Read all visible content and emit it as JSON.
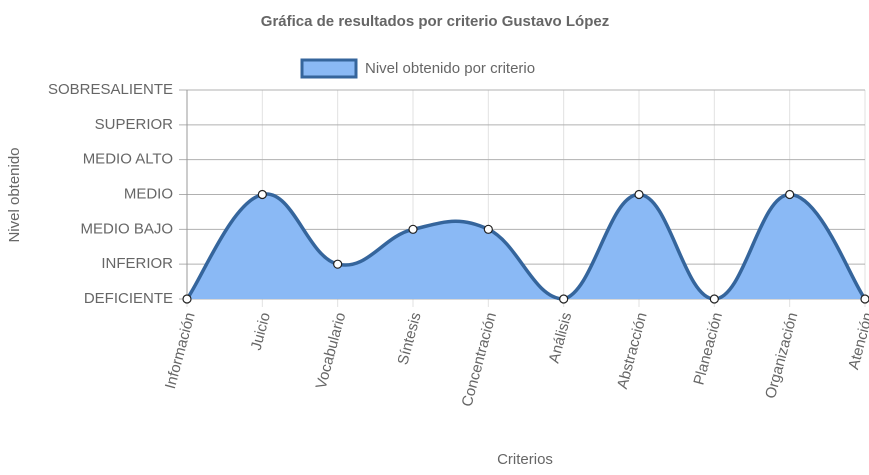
{
  "chart_data": {
    "type": "line",
    "title": "Gráfica de resultados por criterio Gustavo López",
    "x_label": "Criterios",
    "y_label": "Nivel obtenido",
    "categories": [
      "Información",
      "Juicio",
      "Vocabulario",
      "Síntesis",
      "Concentración",
      "Análisis",
      "Abstracción",
      "Planeación",
      "Organización",
      "Atención"
    ],
    "series": [
      {
        "name": "Nivel obtenido por criterio",
        "color": "#35659c",
        "fill": "#8ab9f5",
        "values": [
          0,
          3,
          1,
          2,
          2,
          0,
          3,
          0,
          3,
          0
        ]
      }
    ],
    "ylim": [
      0,
      6
    ],
    "yticks": [
      {
        "value": 0,
        "label": "DEFICIENTE"
      },
      {
        "value": 1,
        "label": "INFERIOR"
      },
      {
        "value": 2,
        "label": "MEDIO BAJO"
      },
      {
        "value": 3,
        "label": "MEDIO"
      },
      {
        "value": 4,
        "label": "MEDIO ALTO"
      },
      {
        "value": 5,
        "label": "SUPERIOR"
      },
      {
        "value": 6,
        "label": "SOBRESALIENTE"
      }
    ],
    "grid": true,
    "legend": "top",
    "smooth": true
  }
}
